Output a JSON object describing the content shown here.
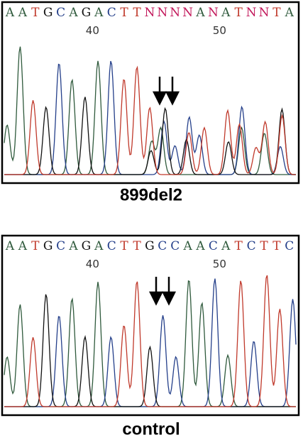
{
  "panels": [
    {
      "sequence": [
        "A",
        "A",
        "T",
        "G",
        "C",
        "A",
        "G",
        "A",
        "C",
        "T",
        "T",
        "N",
        "N",
        "N",
        "N",
        "A",
        "N",
        "A",
        "T",
        "N",
        "N",
        "T",
        "A"
      ],
      "position_labels": [
        "40",
        "50"
      ],
      "caption": "899del2"
    },
    {
      "sequence": [
        "A",
        "A",
        "T",
        "G",
        "C",
        "A",
        "G",
        "A",
        "C",
        "T",
        "T",
        "G",
        "C",
        "C",
        "A",
        "A",
        "C",
        "A",
        "T",
        "C",
        "T",
        "T",
        "C"
      ],
      "position_labels": [
        "40",
        "50"
      ],
      "caption": "control"
    }
  ],
  "base_colors": {
    "A": "#2f5a3c",
    "C": "#243f8a",
    "G": "#111111",
    "T": "#c0392b",
    "N": "#c2185b"
  }
}
